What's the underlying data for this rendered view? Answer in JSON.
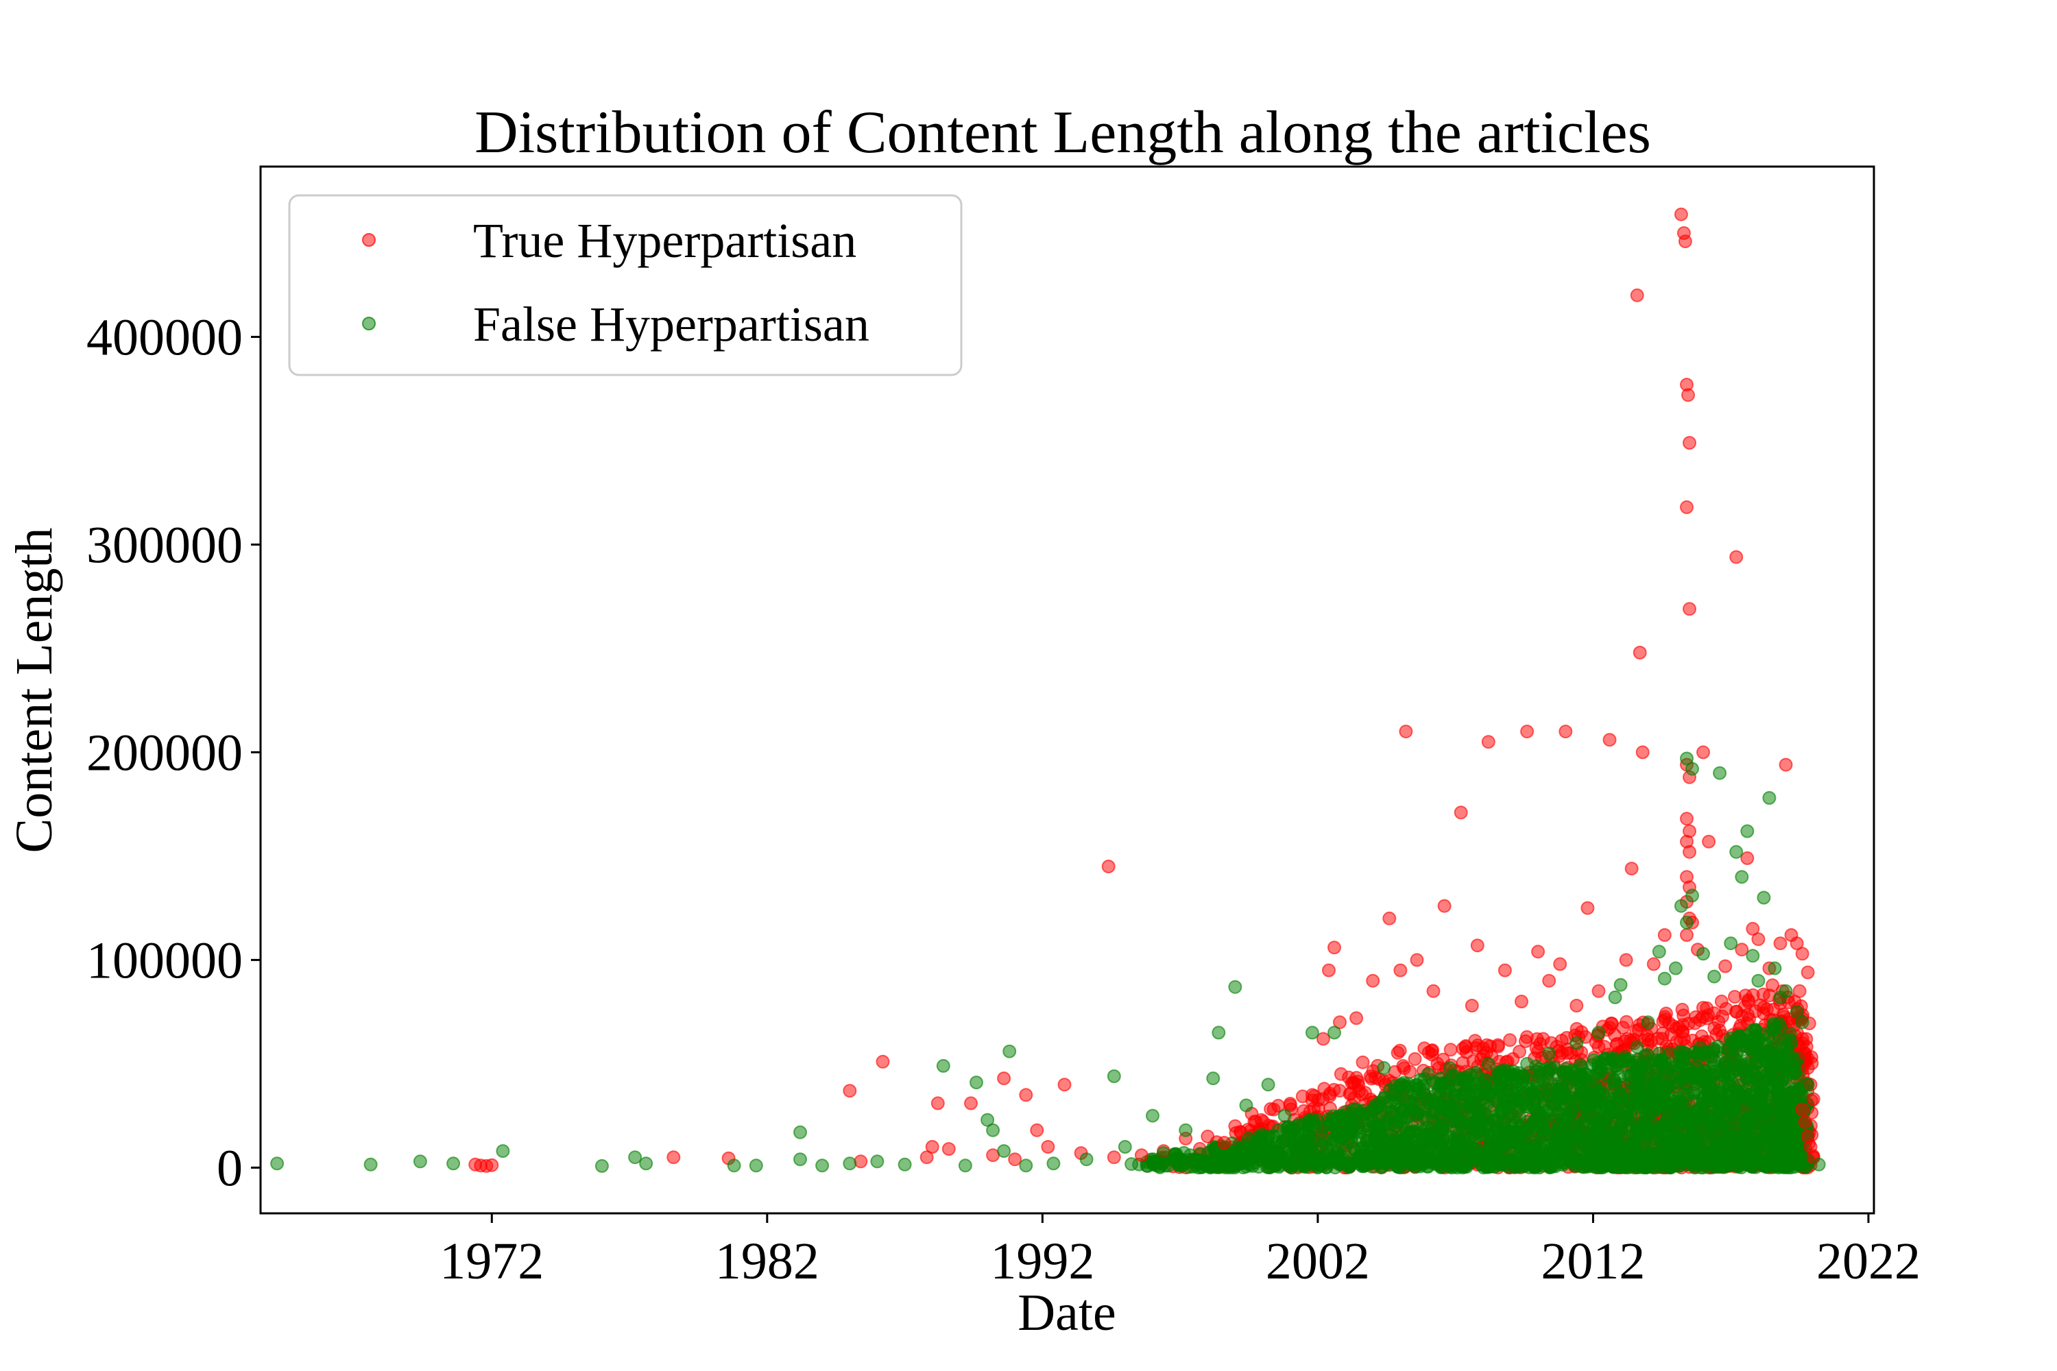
{
  "chart_data": {
    "type": "scatter",
    "title": "Distribution of Content Length along the articles",
    "xlabel": "Date",
    "ylabel": "Content Length",
    "xlim": [
      1963.6,
      2022.2
    ],
    "ylim": [
      -22000,
      482000
    ],
    "x_ticks": [
      1972,
      1982,
      1992,
      2002,
      2012,
      2022
    ],
    "y_ticks": [
      0,
      100000,
      200000,
      300000,
      400000
    ],
    "grid": false,
    "legend_position": "upper-left",
    "series": [
      {
        "name": "True Hyperpartisan",
        "color": "#ff0000",
        "points": [
          [
            1971.4,
            1500
          ],
          [
            1971.6,
            1000
          ],
          [
            1971.8,
            800
          ],
          [
            1972.0,
            1200
          ],
          [
            1978.6,
            5000
          ],
          [
            1980.6,
            4500
          ],
          [
            1985.0,
            37000
          ],
          [
            1985.4,
            3000
          ],
          [
            1986.2,
            51000
          ],
          [
            1987.8,
            5000
          ],
          [
            1988.0,
            10000
          ],
          [
            1988.2,
            31000
          ],
          [
            1988.6,
            9000
          ],
          [
            1989.4,
            31000
          ],
          [
            1990.6,
            43000
          ],
          [
            1990.2,
            6000
          ],
          [
            1991.0,
            4000
          ],
          [
            1991.4,
            35000
          ],
          [
            1991.8,
            18000
          ],
          [
            1992.2,
            10000
          ],
          [
            1992.8,
            40000
          ],
          [
            1993.4,
            7000
          ],
          [
            1994.4,
            145000
          ],
          [
            1994.6,
            5000
          ],
          [
            1995.6,
            6000
          ],
          [
            1996.4,
            8000
          ],
          [
            1997.2,
            14000
          ],
          [
            1998.0,
            15000
          ],
          [
            1998.6,
            12000
          ],
          [
            1999.0,
            20000
          ],
          [
            1999.6,
            26000
          ],
          [
            2000.4,
            28000
          ],
          [
            2001.0,
            30000
          ],
          [
            2001.8,
            35000
          ],
          [
            2002.2,
            62000
          ],
          [
            2002.4,
            95000
          ],
          [
            2002.6,
            106000
          ],
          [
            2002.8,
            70000
          ],
          [
            2003.4,
            72000
          ],
          [
            2004.0,
            90000
          ],
          [
            2004.6,
            120000
          ],
          [
            2005.0,
            95000
          ],
          [
            2005.2,
            210000
          ],
          [
            2005.6,
            100000
          ],
          [
            2006.2,
            85000
          ],
          [
            2006.6,
            126000
          ],
          [
            2007.2,
            171000
          ],
          [
            2007.6,
            78000
          ],
          [
            2007.8,
            107000
          ],
          [
            2008.2,
            205000
          ],
          [
            2008.8,
            95000
          ],
          [
            2009.4,
            80000
          ],
          [
            2009.6,
            210000
          ],
          [
            2010.0,
            104000
          ],
          [
            2010.4,
            90000
          ],
          [
            2010.8,
            98000
          ],
          [
            2011.0,
            210000
          ],
          [
            2011.4,
            78000
          ],
          [
            2011.8,
            125000
          ],
          [
            2012.2,
            85000
          ],
          [
            2012.6,
            206000
          ],
          [
            2013.2,
            100000
          ],
          [
            2013.4,
            144000
          ],
          [
            2013.8,
            200000
          ],
          [
            2013.6,
            420000
          ],
          [
            2013.7,
            248000
          ],
          [
            2014.2,
            98000
          ],
          [
            2014.6,
            112000
          ],
          [
            2015.2,
            459000
          ],
          [
            2015.3,
            450000
          ],
          [
            2015.35,
            446000
          ],
          [
            2015.4,
            377000
          ],
          [
            2015.45,
            372000
          ],
          [
            2015.5,
            349000
          ],
          [
            2015.4,
            318000
          ],
          [
            2015.5,
            269000
          ],
          [
            2015.4,
            194000
          ],
          [
            2015.5,
            188000
          ],
          [
            2015.4,
            168000
          ],
          [
            2015.5,
            162000
          ],
          [
            2015.4,
            157000
          ],
          [
            2015.5,
            152000
          ],
          [
            2015.4,
            140000
          ],
          [
            2015.5,
            135000
          ],
          [
            2015.4,
            128000
          ],
          [
            2015.5,
            120000
          ],
          [
            2015.6,
            118000
          ],
          [
            2015.4,
            112000
          ],
          [
            2015.8,
            105000
          ],
          [
            2016.0,
            200000
          ],
          [
            2016.2,
            157000
          ],
          [
            2016.8,
            97000
          ],
          [
            2017.2,
            294000
          ],
          [
            2017.6,
            149000
          ],
          [
            2017.4,
            105000
          ],
          [
            2017.8,
            115000
          ],
          [
            2018.0,
            110000
          ],
          [
            2018.4,
            96000
          ],
          [
            2018.8,
            108000
          ],
          [
            2019.0,
            194000
          ],
          [
            2019.2,
            112000
          ],
          [
            2019.4,
            108000
          ],
          [
            2019.6,
            103000
          ],
          [
            2019.8,
            94000
          ],
          [
            2019.5,
            85000
          ],
          [
            2019.6,
            62000
          ],
          [
            2019.7,
            55000
          ],
          [
            2019.8,
            48000
          ],
          [
            2019.9,
            40000
          ],
          [
            2020.0,
            33000
          ],
          [
            2019.6,
            28000
          ],
          [
            2019.7,
            22000
          ],
          [
            2019.8,
            15000
          ],
          [
            2019.9,
            10000
          ],
          [
            2020.0,
            5000
          ]
        ]
      },
      {
        "name": "False Hyperpartisan",
        "color": "#008000",
        "points": [
          [
            1964.2,
            2000
          ],
          [
            1967.6,
            1500
          ],
          [
            1969.4,
            3000
          ],
          [
            1970.6,
            2000
          ],
          [
            1972.4,
            8000
          ],
          [
            1976.0,
            800
          ],
          [
            1977.2,
            5000
          ],
          [
            1977.6,
            2000
          ],
          [
            1980.8,
            1000
          ],
          [
            1981.6,
            1000
          ],
          [
            1983.2,
            17000
          ],
          [
            1983.2,
            4000
          ],
          [
            1984.0,
            1000
          ],
          [
            1985.0,
            2000
          ],
          [
            1986.0,
            3000
          ],
          [
            1987.0,
            1500
          ],
          [
            1988.4,
            49000
          ],
          [
            1989.6,
            41000
          ],
          [
            1990.0,
            23000
          ],
          [
            1990.2,
            18000
          ],
          [
            1989.2,
            1000
          ],
          [
            1990.8,
            56000
          ],
          [
            1990.6,
            8000
          ],
          [
            1991.4,
            1000
          ],
          [
            1992.4,
            2000
          ],
          [
            1993.6,
            4000
          ],
          [
            1994.6,
            44000
          ],
          [
            1995.0,
            10000
          ],
          [
            1996.0,
            25000
          ],
          [
            1996.4,
            7000
          ],
          [
            1997.2,
            18000
          ],
          [
            1998.2,
            43000
          ],
          [
            1998.4,
            65000
          ],
          [
            1999.0,
            87000
          ],
          [
            1999.4,
            30000
          ],
          [
            2000.2,
            40000
          ],
          [
            2000.8,
            25000
          ],
          [
            2001.0,
            18000
          ],
          [
            2001.8,
            65000
          ],
          [
            2002.6,
            65000
          ],
          [
            2003.4,
            28000
          ],
          [
            2004.4,
            48000
          ],
          [
            2005.0,
            40000
          ],
          [
            2005.6,
            38000
          ],
          [
            2006.0,
            45000
          ],
          [
            2006.8,
            48000
          ],
          [
            2007.4,
            40000
          ],
          [
            2008.2,
            50000
          ],
          [
            2008.8,
            45000
          ],
          [
            2009.6,
            50000
          ],
          [
            2010.4,
            55000
          ],
          [
            2011.4,
            60000
          ],
          [
            2012.2,
            65000
          ],
          [
            2012.8,
            82000
          ],
          [
            2013.0,
            88000
          ],
          [
            2013.6,
            58000
          ],
          [
            2014.0,
            70000
          ],
          [
            2014.4,
            104000
          ],
          [
            2014.6,
            91000
          ],
          [
            2015.0,
            96000
          ],
          [
            2015.2,
            126000
          ],
          [
            2015.4,
            118000
          ],
          [
            2015.6,
            131000
          ],
          [
            2015.4,
            197000
          ],
          [
            2015.6,
            192000
          ],
          [
            2016.0,
            103000
          ],
          [
            2016.4,
            92000
          ],
          [
            2016.6,
            190000
          ],
          [
            2017.0,
            108000
          ],
          [
            2017.2,
            152000
          ],
          [
            2017.6,
            162000
          ],
          [
            2017.4,
            140000
          ],
          [
            2017.8,
            102000
          ],
          [
            2018.0,
            90000
          ],
          [
            2018.4,
            178000
          ],
          [
            2018.2,
            130000
          ],
          [
            2018.6,
            96000
          ],
          [
            2018.8,
            82000
          ],
          [
            2019.0,
            85000
          ],
          [
            2019.4,
            75000
          ],
          [
            2019.6,
            70000
          ],
          [
            2019.2,
            60000
          ],
          [
            2019.8,
            40000
          ],
          [
            2020.2,
            1500
          ]
        ]
      }
    ],
    "bulk_regions": [
      {
        "series": "True Hyperpartisan",
        "x_range": [
          1996.0,
          2020.0
        ],
        "y_max_profile": [
          [
            1996,
            6000
          ],
          [
            1999,
            20000
          ],
          [
            2002,
            40000
          ],
          [
            2004,
            55000
          ],
          [
            2008,
            62000
          ],
          [
            2012,
            68000
          ],
          [
            2016,
            78000
          ],
          [
            2019,
            90000
          ],
          [
            2020,
            70000
          ]
        ]
      },
      {
        "series": "False Hyperpartisan",
        "x_range": [
          1995.0,
          2019.8
        ],
        "y_max_profile": [
          [
            1995,
            3000
          ],
          [
            1999,
            12000
          ],
          [
            2002,
            25000
          ],
          [
            2004,
            30000
          ],
          [
            2005,
            42000
          ],
          [
            2008,
            46000
          ],
          [
            2012,
            52000
          ],
          [
            2016,
            58000
          ],
          [
            2019,
            72000
          ],
          [
            2019.8,
            40000
          ]
        ]
      }
    ]
  }
}
